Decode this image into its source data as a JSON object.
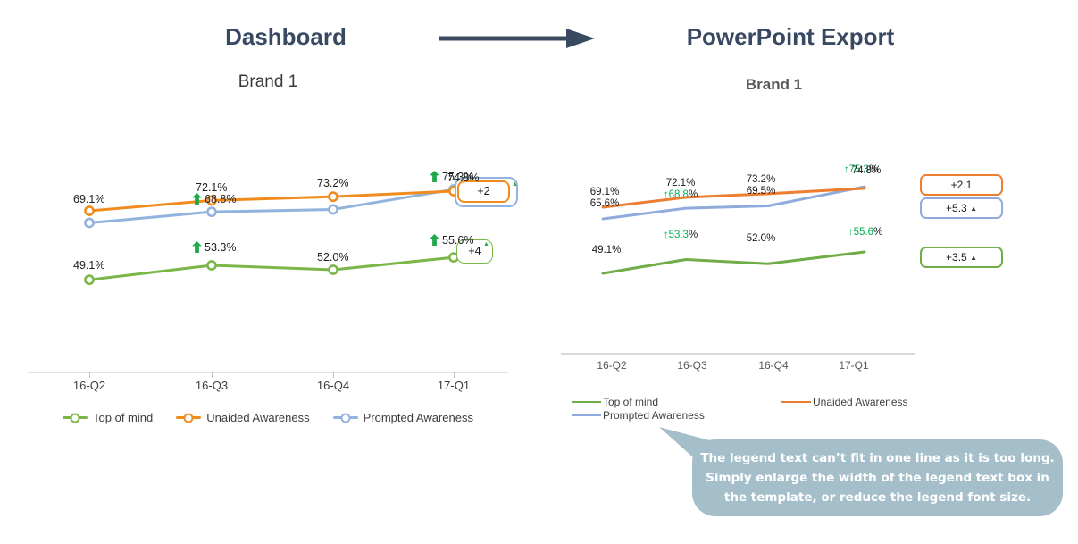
{
  "flow": {
    "dashboard_label": "Dashboard",
    "export_label": "PowerPoint Export",
    "arrow_color": "#3a4962"
  },
  "colors": {
    "header_text": "#3a4962",
    "dashboard_green": "#7ab648",
    "dashboard_orange": "#f08c1e",
    "dashboard_blue": "#92b3de",
    "dashboard_sig_green": "#21a84a",
    "export_green": "#70ad47",
    "export_orange": "#ed7d31",
    "export_blue": "#8faadc",
    "export_sig_green": "#00b050",
    "callout_bg": "#a5bfca",
    "callout_text": "#ffffff",
    "title_gray": "#595959"
  },
  "chart_data": [
    {
      "id": "dashboard",
      "type": "line",
      "title": "Brand 1",
      "categories": [
        "16-Q2",
        "16-Q3",
        "16-Q4",
        "17-Q1"
      ],
      "value_format": "percent",
      "legend_position": "bottom",
      "grid": false,
      "series": [
        {
          "name": "Top of mind",
          "color": "#7ab648",
          "values": [
            49.1,
            53.3,
            52.0,
            55.6
          ]
        },
        {
          "name": "Unaided Awareness",
          "color": "#f08c1e",
          "values": [
            69.1,
            72.1,
            73.2,
            74.8
          ]
        },
        {
          "name": "Prompted Awareness",
          "color": "#92b3de",
          "values": [
            65.6,
            68.8,
            69.5,
            75.3
          ]
        }
      ],
      "badges": [
        {
          "text": "+2",
          "tri": "▲"
        },
        {
          "text": "+4",
          "tri": "▲"
        }
      ],
      "point_labels": [
        {
          "x": 65,
          "y": 151,
          "parts": [
            {
              "t": "69.1%",
              "c": "#212121"
            }
          ]
        },
        {
          "x": 65,
          "y": 225,
          "parts": [
            {
              "t": "49.1%",
              "c": "#212121"
            }
          ]
        },
        {
          "x": 202,
          "y": 138,
          "parts": [
            {
              "t": "72.1%",
              "c": "#212121"
            }
          ]
        },
        {
          "x": 198,
          "y": 151,
          "parts": [
            {
              "block": true,
              "c": "#21a84a"
            },
            {
              "t": "68.8%",
              "c": "#212121"
            }
          ]
        },
        {
          "x": 198,
          "y": 205,
          "parts": [
            {
              "block": true,
              "c": "#21a84a"
            },
            {
              "t": "53.3%",
              "c": "#212121"
            }
          ]
        },
        {
          "x": 338,
          "y": 133,
          "parts": [
            {
              "t": "73.2%",
              "c": "#212121"
            }
          ]
        },
        {
          "x": 338,
          "y": 216,
          "parts": [
            {
              "t": "52.0%",
              "c": "#212121"
            }
          ]
        },
        {
          "x": 464,
          "y": 126,
          "parts": [
            {
              "block": true,
              "c": "#21a84a"
            },
            {
              "t": "75.3%",
              "c": "#212121"
            }
          ]
        },
        {
          "x": 484,
          "y": 127,
          "parts": [
            {
              "t": "74.8%",
              "c": "#212121"
            }
          ]
        },
        {
          "x": 464,
          "y": 197,
          "parts": [
            {
              "block": true,
              "c": "#21a84a"
            },
            {
              "t": "55.6%",
              "c": "#212121"
            }
          ]
        }
      ]
    },
    {
      "id": "export",
      "type": "line",
      "title": "Brand 1",
      "categories": [
        "16-Q2",
        "16-Q3",
        "16-Q4",
        "17-Q1"
      ],
      "value_format": "percent",
      "legend_position": "bottom",
      "grid": false,
      "series": [
        {
          "name": "Top of mind",
          "color": "#70ad47",
          "values": [
            49.1,
            53.3,
            52.0,
            55.6
          ]
        },
        {
          "name": "Unaided Awareness",
          "color": "#ed7d31",
          "values": [
            69.1,
            72.1,
            73.2,
            74.8
          ]
        },
        {
          "name": "Prompted Awareness",
          "color": "#8faadc",
          "values": [
            65.6,
            68.8,
            69.5,
            75.3
          ]
        }
      ],
      "badges": [
        {
          "text": "+2.1",
          "tri": ""
        },
        {
          "text": "+5.3",
          "tri": "▲"
        },
        {
          "text": "+3.5",
          "tri": "▲"
        }
      ],
      "point_labels": [
        {
          "x": 79,
          "y": 144,
          "anchor": "center",
          "parts": [
            {
              "t": "69.1%",
              "c": "#1a1a1a"
            }
          ]
        },
        {
          "x": 79,
          "y": 157,
          "anchor": "center",
          "parts": [
            {
              "t": "65.6%",
              "c": "#1a1a1a"
            }
          ]
        },
        {
          "x": 81,
          "y": 209,
          "anchor": "center",
          "parts": [
            {
              "t": "49.1%",
              "c": "#1a1a1a"
            }
          ]
        },
        {
          "x": 164,
          "y": 134,
          "anchor": "center",
          "parts": [
            {
              "t": "72.1%",
              "c": "#1a1a1a"
            }
          ]
        },
        {
          "x": 164,
          "y": 147,
          "anchor": "center",
          "parts": [
            {
              "t": "↑68.8",
              "c": "#00b050"
            },
            {
              "t": "%",
              "c": "#1a1a1a"
            }
          ]
        },
        {
          "x": 164,
          "y": 192,
          "anchor": "center",
          "parts": [
            {
              "t": "↑53.3",
              "c": "#00b050"
            },
            {
              "t": "%",
              "c": "#1a1a1a"
            }
          ]
        },
        {
          "x": 254,
          "y": 130,
          "anchor": "center",
          "parts": [
            {
              "t": "73.2%",
              "c": "#1a1a1a"
            }
          ]
        },
        {
          "x": 254,
          "y": 143,
          "anchor": "center",
          "parts": [
            {
              "t": "69.5%",
              "c": "#1a1a1a"
            }
          ]
        },
        {
          "x": 254,
          "y": 196,
          "anchor": "center",
          "parts": [
            {
              "t": "52.0%",
              "c": "#1a1a1a"
            }
          ]
        },
        {
          "x": 366,
          "y": 119,
          "anchor": "center",
          "parts": [
            {
              "t": "↑75.3",
              "c": "#00b050"
            },
            {
              "t": "%",
              "c": "#1a1a1a"
            }
          ]
        },
        {
          "x": 372,
          "y": 120,
          "anchor": "center",
          "parts": [
            {
              "t": "74.8%",
              "c": "#1a1a1a"
            }
          ]
        },
        {
          "x": 371,
          "y": 189,
          "anchor": "center",
          "parts": [
            {
              "t": "↑55.6",
              "c": "#00b050"
            },
            {
              "t": "%",
              "c": "#1a1a1a"
            }
          ]
        }
      ]
    }
  ],
  "callout": {
    "line1": "The legend text can’t fit in one line as it is too long.",
    "line2": "Simply enlarge the width of the legend text box in",
    "line3_pre": "the ",
    "line3_bold": "template,",
    "line3_post": " or reduce the legend font size."
  }
}
